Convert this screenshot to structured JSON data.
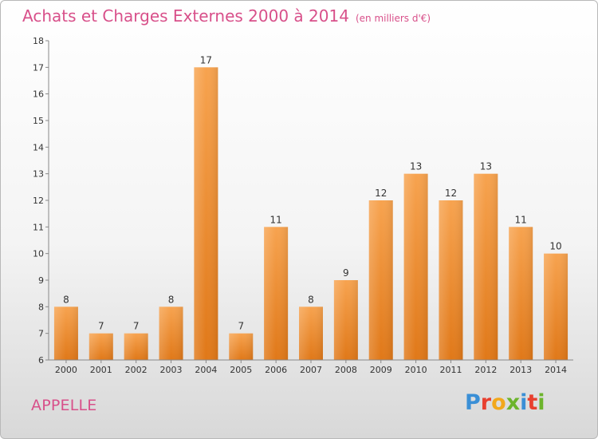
{
  "header": {
    "title": "Achats et Charges Externes 2000 à 2014",
    "unit_note": "(en milliers d'€)"
  },
  "footer": {
    "commune": "APPELLE",
    "logo_letters": [
      "P",
      "r",
      "o",
      "x",
      "i",
      "t",
      "i"
    ],
    "logo_colors": [
      "#3a8fd6",
      "#e8402f",
      "#f2a81c",
      "#6cb42c",
      "#3a8fd6",
      "#e8402f",
      "#6cb42c"
    ]
  },
  "colors": {
    "bar_top": "#f7a34f",
    "bar_bottom": "#e07818",
    "title": "#d8508a",
    "axis_text": "#333333"
  },
  "chart_data": {
    "type": "bar",
    "title": "Achats et Charges Externes 2000 à 2014",
    "subtitle": "(en milliers d'€)",
    "xlabel": "",
    "ylabel": "",
    "categories": [
      "2000",
      "2001",
      "2002",
      "2003",
      "2004",
      "2005",
      "2006",
      "2007",
      "2008",
      "2009",
      "2010",
      "2011",
      "2012",
      "2013",
      "2014"
    ],
    "values": [
      8,
      7,
      7,
      8,
      17,
      7,
      11,
      8,
      9,
      12,
      13,
      12,
      13,
      11,
      10
    ],
    "data_labels": [
      "8",
      "7",
      "7",
      "8",
      "17",
      "7",
      "11",
      "8",
      "9",
      "12",
      "13",
      "12",
      "13",
      "11",
      "10"
    ],
    "ylim": [
      6,
      18
    ],
    "yticks": [
      6,
      7,
      8,
      9,
      10,
      11,
      12,
      13,
      14,
      15,
      16,
      17,
      18
    ],
    "grid": false,
    "legend": "none"
  }
}
